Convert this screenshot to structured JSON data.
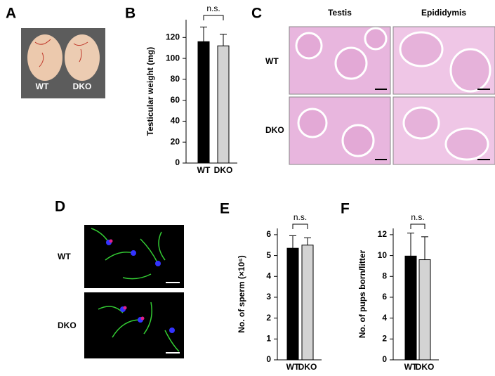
{
  "panels": {
    "A": {
      "label": "A",
      "texts": [
        "WT",
        "DKO"
      ]
    },
    "C": {
      "label": "C",
      "columns": [
        "Testis",
        "Epididymis"
      ],
      "rows": [
        "WT",
        "DKO"
      ]
    },
    "D": {
      "label": "D",
      "rows": [
        "WT",
        "DKO"
      ]
    }
  },
  "chart_data": [
    {
      "type": "bar",
      "label": "B",
      "ylabel": "Testicular weight (mg)",
      "categories": [
        "WT",
        "DKO"
      ],
      "values": [
        116,
        112
      ],
      "errors": [
        14,
        11
      ],
      "colors": [
        "#000000",
        "#d3d3d3"
      ],
      "ylim": [
        0,
        137
      ],
      "yticks": [
        0,
        20,
        40,
        60,
        80,
        100,
        120
      ],
      "annotation": "n.s."
    },
    {
      "type": "bar",
      "label": "E",
      "ylabel": "No. of sperm (×10⁶)",
      "categories": [
        "WT",
        "DKO"
      ],
      "values": [
        5.35,
        5.5
      ],
      "errors": [
        0.6,
        0.35
      ],
      "colors": [
        "#000000",
        "#d3d3d3"
      ],
      "ylim": [
        0,
        6.3
      ],
      "yticks": [
        0,
        1,
        2,
        3,
        4,
        5,
        6
      ],
      "annotation": "n.s."
    },
    {
      "type": "bar",
      "label": "F",
      "ylabel": "No. of pups born/litter",
      "categories": [
        "WT",
        "DKO"
      ],
      "values": [
        9.95,
        9.6
      ],
      "errors": [
        2.2,
        2.2
      ],
      "colors": [
        "#000000",
        "#d3d3d3"
      ],
      "ylim": [
        0,
        12.6
      ],
      "yticks": [
        0,
        2,
        4,
        6,
        8,
        10,
        12
      ],
      "annotation": "n.s."
    }
  ]
}
